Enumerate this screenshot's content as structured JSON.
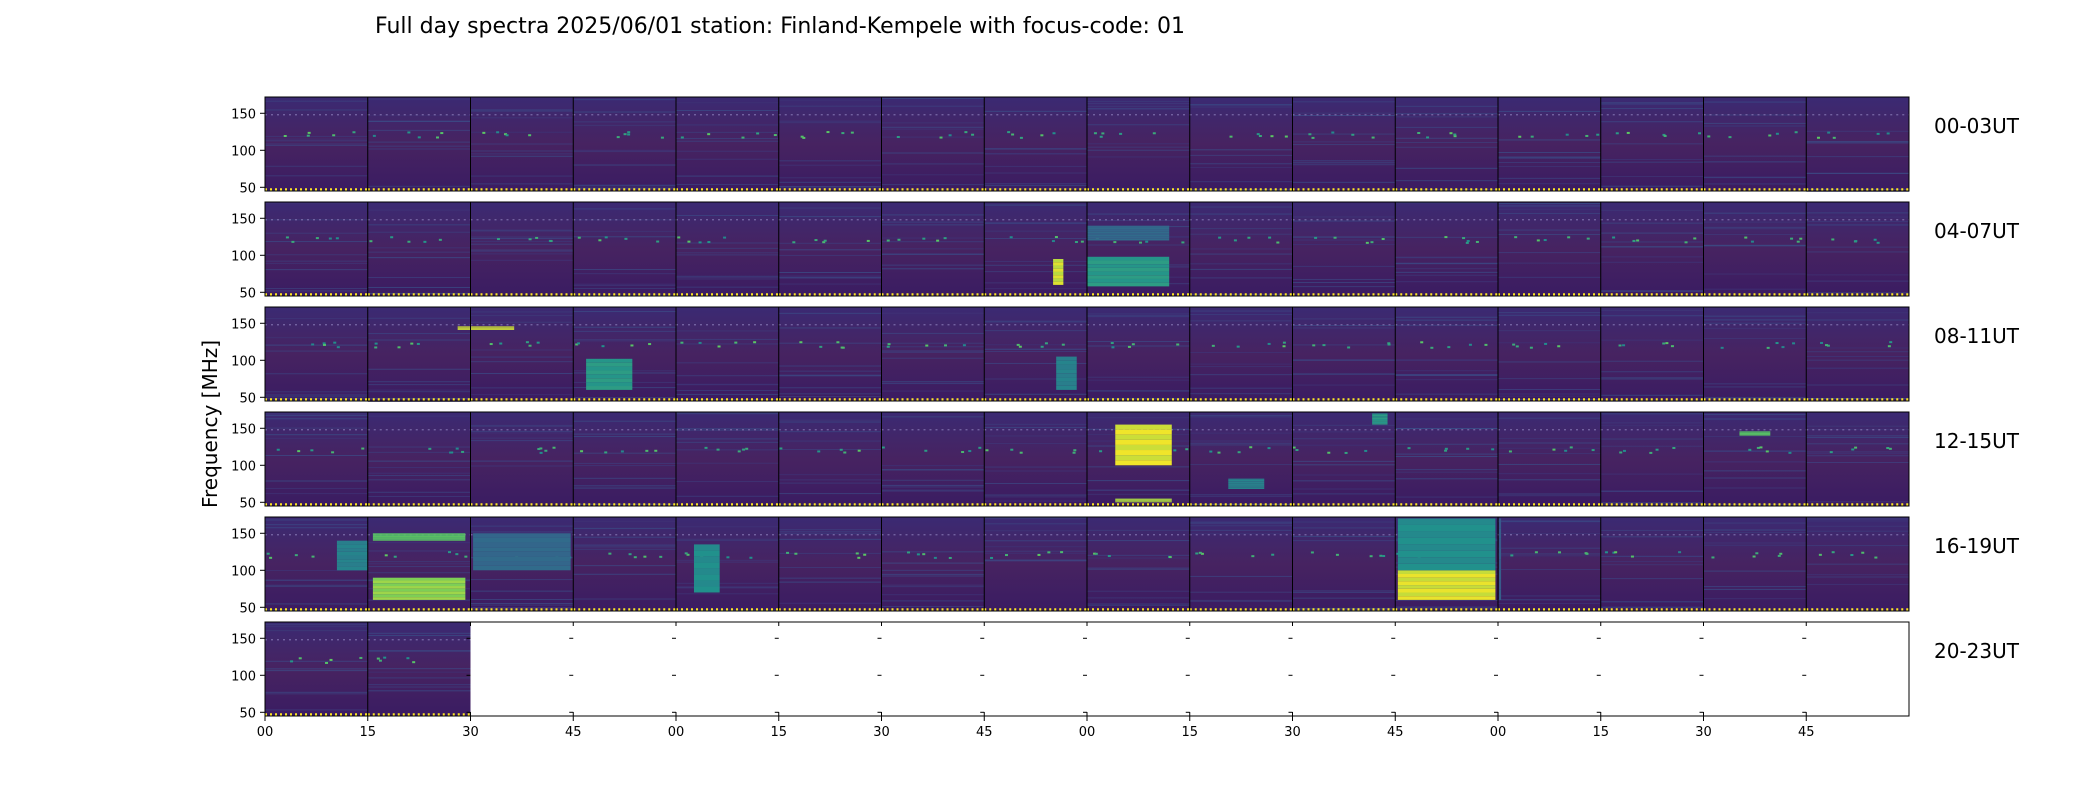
{
  "chart_data": {
    "type": "heatmap",
    "title": "Full day spectra 2025/06/01 station: Finland-Kempele with focus-code: 01",
    "ylabel": "Frequency [MHz]",
    "ylim": [
      45,
      172
    ],
    "yticks": [
      50,
      100,
      150
    ],
    "rows": [
      "00-03UT",
      "04-07UT",
      "08-11UT",
      "12-15UT",
      "16-19UT",
      "20-23UT"
    ],
    "xtick_labels": [
      "00",
      "15",
      "30",
      "45",
      "00",
      "15",
      "30",
      "45",
      "00",
      "15",
      "30",
      "45",
      "00",
      "15",
      "30",
      "45"
    ],
    "segment_minutes": 15,
    "segments_per_row": 16,
    "available_segments_last_row": 2,
    "colormap": [
      "#440154",
      "#3b528b",
      "#21918c",
      "#5ec962",
      "#fde725"
    ],
    "bursts": [
      {
        "row": 1,
        "segment": 7,
        "position": 0.72,
        "width": 0.1,
        "fmin": 60,
        "fmax": 95,
        "intensity": 0.95
      },
      {
        "row": 1,
        "segment": 8,
        "position": 0.4,
        "width": 0.8,
        "fmin": 58,
        "fmax": 98,
        "intensity": 0.55
      },
      {
        "row": 1,
        "segment": 8,
        "position": 0.4,
        "width": 0.8,
        "fmin": 120,
        "fmax": 140,
        "intensity": 0.35
      },
      {
        "row": 2,
        "segment": 2,
        "position": 0.15,
        "width": 0.55,
        "fmin": 141,
        "fmax": 146,
        "intensity": 0.95
      },
      {
        "row": 2,
        "segment": 3,
        "position": 0.35,
        "width": 0.45,
        "fmin": 60,
        "fmax": 102,
        "intensity": 0.55
      },
      {
        "row": 2,
        "segment": 7,
        "position": 0.8,
        "width": 0.2,
        "fmin": 60,
        "fmax": 105,
        "intensity": 0.45
      },
      {
        "row": 3,
        "segment": 8,
        "position": 0.55,
        "width": 0.55,
        "fmin": 100,
        "fmax": 155,
        "intensity": 0.98
      },
      {
        "row": 3,
        "segment": 8,
        "position": 0.55,
        "width": 0.55,
        "fmin": 50,
        "fmax": 55,
        "intensity": 0.9
      },
      {
        "row": 3,
        "segment": 10,
        "position": 0.85,
        "width": 0.15,
        "fmin": 155,
        "fmax": 170,
        "intensity": 0.55
      },
      {
        "row": 3,
        "segment": 9,
        "position": 0.55,
        "width": 0.35,
        "fmin": 68,
        "fmax": 82,
        "intensity": 0.45
      },
      {
        "row": 3,
        "segment": 14,
        "position": 0.5,
        "width": 0.3,
        "fmin": 140,
        "fmax": 146,
        "intensity": 0.75
      },
      {
        "row": 4,
        "segment": 1,
        "position": 0.5,
        "width": 0.9,
        "fmin": 60,
        "fmax": 90,
        "intensity": 0.85
      },
      {
        "row": 4,
        "segment": 1,
        "position": 0.5,
        "width": 0.9,
        "fmin": 140,
        "fmax": 150,
        "intensity": 0.75
      },
      {
        "row": 4,
        "segment": 0,
        "position": 0.85,
        "width": 0.3,
        "fmin": 100,
        "fmax": 140,
        "intensity": 0.45
      },
      {
        "row": 4,
        "segment": 2,
        "position": 0.5,
        "width": 0.95,
        "fmin": 100,
        "fmax": 150,
        "intensity": 0.35
      },
      {
        "row": 4,
        "segment": 4,
        "position": 0.3,
        "width": 0.25,
        "fmin": 70,
        "fmax": 135,
        "intensity": 0.5
      },
      {
        "row": 4,
        "segment": 12,
        "position": 0.02,
        "width": 0.02,
        "fmin": 60,
        "fmax": 170,
        "intensity": 0.3
      },
      {
        "row": 4,
        "segment": 11,
        "position": 0.5,
        "width": 0.95,
        "fmin": 60,
        "fmax": 100,
        "intensity": 0.97
      },
      {
        "row": 4,
        "segment": 11,
        "position": 0.5,
        "width": 0.95,
        "fmin": 100,
        "fmax": 170,
        "intensity": 0.5
      }
    ]
  }
}
